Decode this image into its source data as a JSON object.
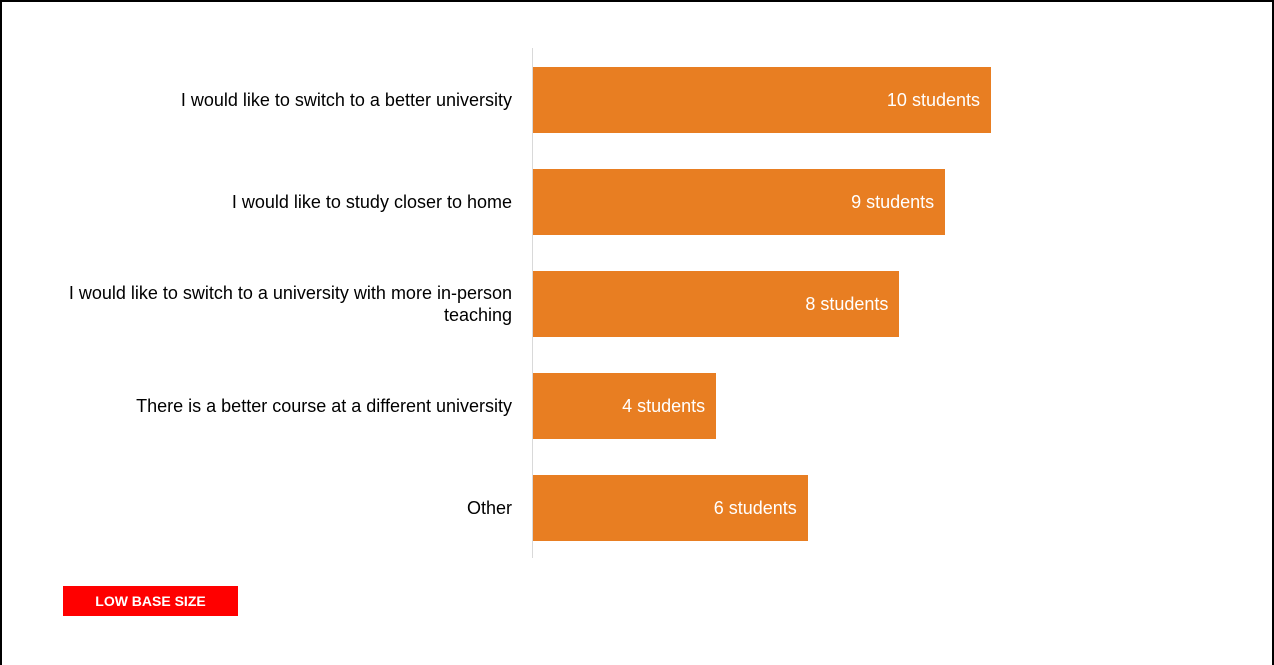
{
  "chart_data": {
    "type": "bar",
    "orientation": "horizontal",
    "categories": [
      "I would like to switch to a better university",
      "I would like to study closer to home",
      "I would like to switch to a university with more in-person teaching",
      "There is a better course at a different university",
      "Other"
    ],
    "values": [
      10,
      9,
      8,
      4,
      6
    ],
    "data_labels": [
      "10 students",
      "9 students",
      "8 students",
      "4 students",
      "6 students"
    ],
    "xlim": [
      0,
      11
    ],
    "grid": false,
    "legend": "none",
    "bar_color": "#E87E22"
  },
  "badge": {
    "text": "LOW BASE SIZE",
    "color": "#FF0000"
  }
}
